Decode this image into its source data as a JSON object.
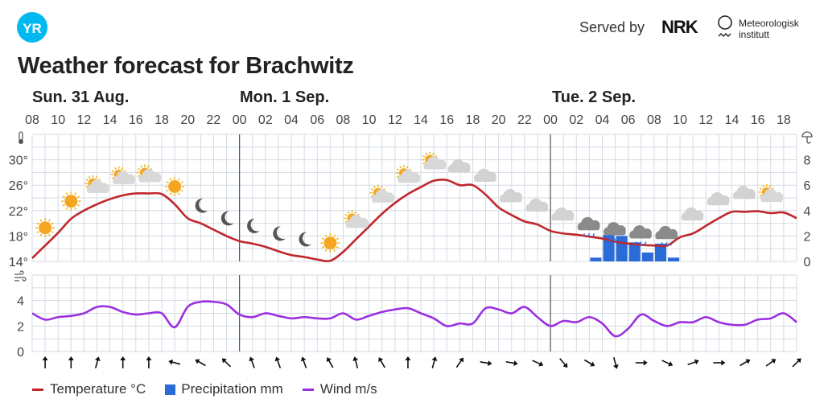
{
  "header": {
    "logo_text": "YR",
    "served_by": "Served by",
    "nrk_logo": "NRK",
    "met_logo": "Meteorologisk institutt",
    "met_line1": "Meteorologisk",
    "met_line2": "institutt"
  },
  "title": "Weather forecast for Brachwitz",
  "days": [
    "Sun. 31 Aug.",
    "Mon. 1 Sep.",
    "Tue. 2 Sep."
  ],
  "colors": {
    "temperature": "#c0272d",
    "precipitation": "#2a6bd8",
    "wind": "#9b30e0",
    "logo": "#00b9f1",
    "grid": "#d3dbe3"
  },
  "legend": {
    "temperature": "Temperature °C",
    "precipitation": "Precipitation mm",
    "wind": "Wind m/s"
  },
  "chart_data": {
    "type": "line",
    "x_start": "Sun 08:00",
    "x_step_hours": 1,
    "hour_tick_labels": [
      "08",
      "10",
      "12",
      "14",
      "16",
      "18",
      "20",
      "22",
      "00",
      "02",
      "04",
      "06",
      "08",
      "10",
      "12",
      "14",
      "16",
      "18",
      "20",
      "22",
      "00",
      "02",
      "04",
      "06",
      "08",
      "10",
      "12",
      "14",
      "16",
      "18"
    ],
    "temperature": {
      "name": "Temperature °C",
      "ylim": [
        14,
        34
      ],
      "ticks": [
        "14°",
        "18°",
        "22°",
        "26°",
        "30°"
      ],
      "tick_values": [
        14,
        18,
        22,
        26,
        30
      ],
      "values": [
        14.5,
        16.5,
        18.5,
        20.7,
        22,
        23,
        23.8,
        24.4,
        24.7,
        24.7,
        24.6,
        23,
        20.8,
        20,
        19,
        18,
        17.2,
        16.8,
        16.3,
        15.6,
        15,
        14.7,
        14.3,
        14.1,
        15.5,
        17.5,
        19.5,
        21.5,
        23.2,
        24.6,
        25.7,
        26.7,
        26.8,
        26,
        26,
        24.5,
        22.5,
        21.3,
        20.3,
        19.8,
        18.8,
        18.4,
        18.2,
        17.9,
        17.6,
        17.1,
        16.8,
        16.6,
        16.5,
        16.5,
        17.8,
        18.4,
        19.6,
        20.8,
        21.8,
        21.8,
        21.9,
        21.6,
        21.7,
        20.8
      ]
    },
    "precipitation": {
      "name": "Precipitation mm",
      "ylim": [
        0,
        10
      ],
      "ticks": [
        "0",
        "2",
        "4",
        "6",
        "8"
      ],
      "tick_values": [
        0,
        2,
        4,
        6,
        8
      ],
      "bars": [
        {
          "hour_index": 43,
          "value": 0.3
        },
        {
          "hour_index": 44,
          "value": 2.1
        },
        {
          "hour_index": 45,
          "value": 2.0
        },
        {
          "hour_index": 46,
          "value": 1.5
        },
        {
          "hour_index": 47,
          "value": 0.7
        },
        {
          "hour_index": 48,
          "value": 1.4
        },
        {
          "hour_index": 49,
          "value": 0.3
        }
      ]
    },
    "wind": {
      "name": "Wind m/s",
      "ylim": [
        0,
        6
      ],
      "ticks": [
        "0",
        "2",
        "4"
      ],
      "tick_values": [
        0,
        2,
        4
      ],
      "values": [
        3.0,
        2.5,
        2.7,
        2.8,
        3.0,
        3.5,
        3.5,
        3.1,
        2.9,
        3.0,
        3.0,
        1.9,
        3.5,
        3.9,
        3.9,
        3.7,
        2.9,
        2.7,
        3.0,
        2.8,
        2.6,
        2.7,
        2.6,
        2.6,
        3.0,
        2.5,
        2.8,
        3.1,
        3.3,
        3.4,
        3.0,
        2.6,
        2.0,
        2.2,
        2.2,
        3.4,
        3.3,
        3.0,
        3.5,
        2.7,
        2.0,
        2.4,
        2.3,
        2.7,
        2.2,
        1.2,
        1.8,
        2.9,
        2.4,
        2.0,
        2.3,
        2.3,
        2.7,
        2.3,
        2.1,
        2.1,
        2.5,
        2.6,
        3.0,
        2.3
      ],
      "direction_arrows_deg": [
        0,
        0,
        15,
        0,
        0,
        285,
        300,
        315,
        340,
        340,
        340,
        330,
        345,
        330,
        0,
        15,
        35,
        100,
        100,
        115,
        140,
        120,
        165,
        90,
        115,
        70,
        90,
        60,
        55,
        45
      ]
    },
    "symbols": [
      "sun",
      "sun",
      "partly-cloudy",
      "partly-cloudy",
      "partly-cloudy",
      "sun",
      "moon",
      "moon",
      "moon",
      "moon",
      "moon",
      "sun",
      "partly-cloudy",
      "partly-cloudy",
      "partly-cloudy",
      "partly-cloudy",
      "cloud",
      "cloud",
      "cloud",
      "cloud",
      "cloud",
      "rain",
      "rain",
      "rain",
      "rain",
      "cloud",
      "cloud",
      "cloud",
      "partly-cloudy"
    ],
    "midnight_hour_indices": [
      16,
      40
    ]
  }
}
